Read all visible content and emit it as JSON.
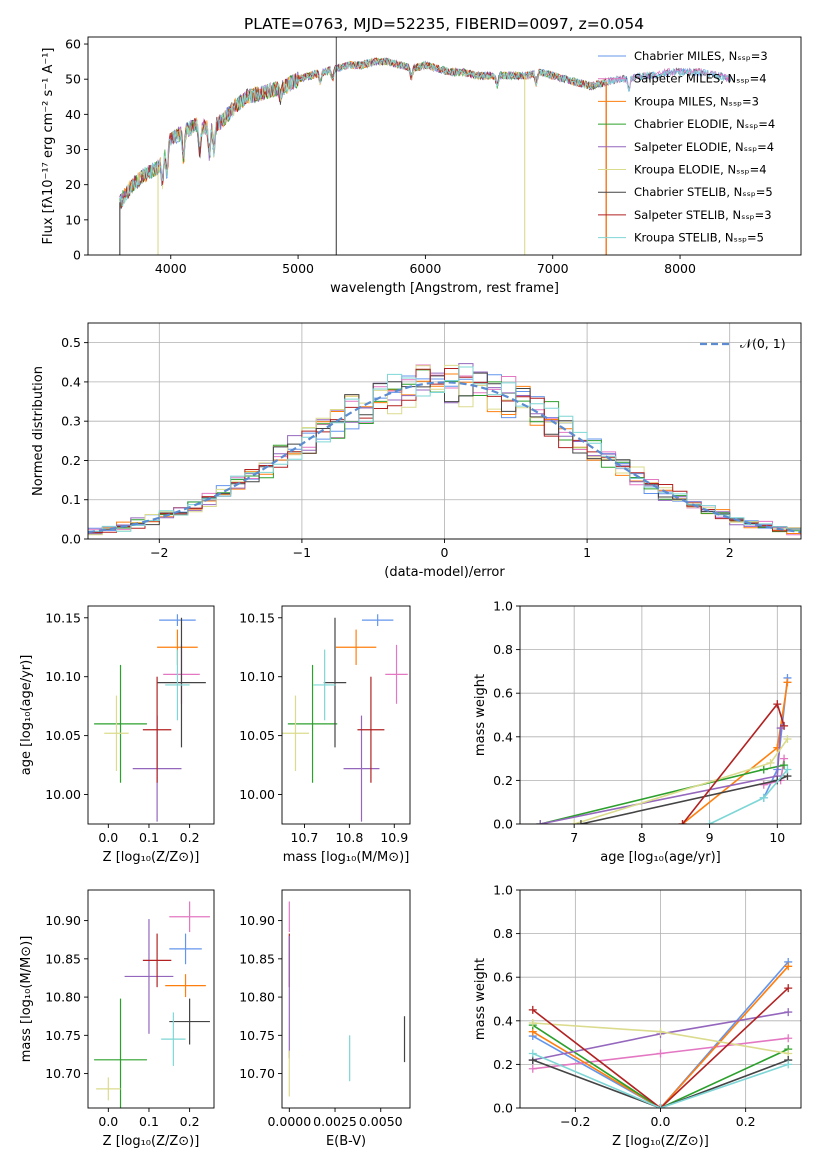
{
  "figure": {
    "title": "PLATE=0763, MJD=52235, FIBERID=0097, z=0.054"
  },
  "colors": {
    "chabrier_miles": "#6495ed",
    "salpeter_miles": "#e377c2",
    "kroupa_miles": "#ff7f0e",
    "chabrier_elodie": "#2ca02c",
    "salpeter_elodie": "#9467bd",
    "kroupa_elodie": "#dbdb8d",
    "chabrier_stelib": "#444444",
    "salpeter_stelib": "#b22222",
    "kroupa_stelib": "#7fd6d6",
    "normal_curve": "#5b8bd0"
  },
  "chart_data": [
    {
      "type": "line",
      "id": "spectrum",
      "xlabel": "wavelength [Angstrom, rest frame]",
      "ylabel": "Flux [fλ10⁻¹⁷ erg cm⁻² s⁻¹ A⁻¹]",
      "xlim": [
        3350,
        8950
      ],
      "ylim": [
        0,
        62
      ],
      "xticks": [
        4000,
        5000,
        6000,
        7000,
        8000
      ],
      "yticks": [
        0,
        10,
        20,
        30,
        40,
        50,
        60
      ],
      "legend_position": "top-right",
      "legend": [
        "Chabrier MILES, Nₛₛₚ=3",
        "Salpeter MILES, Nₛₛₚ=4",
        "Kroupa MILES, Nₛₛₚ=3",
        "Chabrier ELODIE, Nₛₛₚ=4",
        "Salpeter ELODIE, Nₛₛₚ=4",
        "Kroupa ELODIE, Nₛₛₚ=4",
        "Chabrier STELIB, Nₛₛₚ=5",
        "Salpeter STELIB, Nₛₛₚ=3",
        "Kroupa STELIB, Nₛₛₚ=5"
      ],
      "continuum_x": [
        3600,
        3700,
        3800,
        3900,
        4000,
        4100,
        4200,
        4300,
        4400,
        4500,
        4600,
        4700,
        4800,
        4900,
        5000,
        5100,
        5200,
        5300,
        5400,
        5500,
        5600,
        5700,
        5800,
        5900,
        6000,
        6100,
        6200,
        6300,
        6400,
        6500,
        6600,
        6700,
        6800,
        6900,
        7000,
        7100,
        7200,
        7300,
        7400,
        7500,
        7600,
        7700,
        7800,
        7900,
        8000,
        8100,
        8200,
        8300,
        8400
      ],
      "continuum_y": [
        15,
        20,
        23,
        25,
        33,
        35,
        37,
        36,
        38,
        42,
        45,
        46,
        47,
        48,
        50,
        51,
        52,
        53,
        54,
        54,
        55,
        55,
        54,
        53,
        54,
        53,
        52,
        52,
        51,
        51,
        51,
        51,
        51,
        52,
        51,
        50,
        49,
        48,
        49,
        50,
        50,
        51,
        51,
        52,
        52,
        52,
        52,
        51,
        50
      ],
      "spikes": [
        {
          "x": 3900,
          "ymin": 0,
          "color": "kroupa_elodie"
        },
        {
          "x": 5300,
          "ymin": 0,
          "color": "chabrier_stelib"
        },
        {
          "x": 6780,
          "ymin": 0,
          "color": "kroupa_elodie"
        },
        {
          "x": 7420,
          "ymin": 0,
          "color": "salpeter_stelib"
        },
        {
          "x": 7420,
          "ymin": 0,
          "color": "kroupa_miles"
        },
        {
          "x": 3600,
          "ymin": 0,
          "color": "chabrier_stelib"
        }
      ]
    },
    {
      "type": "step",
      "id": "residual_hist",
      "xlabel": "(data-model)/error",
      "ylabel": "Normed distribution",
      "xlim": [
        -2.5,
        2.5
      ],
      "ylim": [
        0,
        0.55
      ],
      "xticks": [
        -2,
        -1,
        0,
        1,
        2
      ],
      "yticks": [
        0.0,
        0.1,
        0.2,
        0.3,
        0.4,
        0.5
      ],
      "grid": true,
      "legend": [
        "𝒩(0, 1)"
      ],
      "legend_position": "top-right",
      "normal_curve": {
        "mean": 0,
        "sigma": 1,
        "style": "dashed"
      }
    },
    {
      "type": "scatter",
      "id": "age_vs_Z",
      "xlabel": "Z [log₁₀(Z/Z⊙)]",
      "ylabel": "age  [log₁₀(age/yr)]",
      "xlim": [
        -0.05,
        0.26
      ],
      "ylim": [
        9.975,
        10.16
      ],
      "xticks": [
        0.0,
        0.1,
        0.2
      ],
      "yticks": [
        10.0,
        10.05,
        10.1,
        10.15
      ],
      "points": [
        {
          "x": 0.17,
          "y": 10.148,
          "xerr": 0.045,
          "yerr": 0.005,
          "color": "chabrier_miles"
        },
        {
          "x": 0.18,
          "y": 10.102,
          "xerr": 0.045,
          "yerr": 0.025,
          "color": "salpeter_miles"
        },
        {
          "x": 0.17,
          "y": 10.125,
          "xerr": 0.05,
          "yerr": 0.015,
          "color": "kroupa_miles"
        },
        {
          "x": 0.03,
          "y": 10.06,
          "xerr": 0.065,
          "yerr": 0.05,
          "color": "chabrier_elodie"
        },
        {
          "x": 0.12,
          "y": 10.022,
          "xerr": 0.06,
          "yerr": 0.045,
          "color": "salpeter_elodie"
        },
        {
          "x": 0.02,
          "y": 10.052,
          "xerr": 0.03,
          "yerr": 0.032,
          "color": "kroupa_elodie"
        },
        {
          "x": 0.18,
          "y": 10.095,
          "xerr": 0.06,
          "yerr": 0.055,
          "color": "chabrier_stelib"
        },
        {
          "x": 0.12,
          "y": 10.055,
          "xerr": 0.035,
          "yerr": 0.045,
          "color": "salpeter_stelib"
        },
        {
          "x": 0.17,
          "y": 10.093,
          "xerr": 0.03,
          "yerr": 0.03,
          "color": "kroupa_stelib"
        }
      ]
    },
    {
      "type": "scatter",
      "id": "age_vs_mass",
      "xlabel": "mass [log₁₀(M/M⊙)]",
      "ylabel": "",
      "xlim": [
        10.65,
        10.935
      ],
      "ylim": [
        9.975,
        10.16
      ],
      "xticks": [
        10.7,
        10.8,
        10.9
      ],
      "yticks": [
        10.0,
        10.05,
        10.1,
        10.15
      ],
      "points": [
        {
          "x": 10.863,
          "y": 10.148,
          "xerr": 0.035,
          "yerr": 0.005,
          "color": "chabrier_miles"
        },
        {
          "x": 10.905,
          "y": 10.102,
          "xerr": 0.025,
          "yerr": 0.025,
          "color": "salpeter_miles"
        },
        {
          "x": 10.815,
          "y": 10.125,
          "xerr": 0.045,
          "yerr": 0.015,
          "color": "kroupa_miles"
        },
        {
          "x": 10.718,
          "y": 10.06,
          "xerr": 0.055,
          "yerr": 0.05,
          "color": "chabrier_elodie"
        },
        {
          "x": 10.827,
          "y": 10.022,
          "xerr": 0.04,
          "yerr": 0.045,
          "color": "salpeter_elodie"
        },
        {
          "x": 10.68,
          "y": 10.052,
          "xerr": 0.03,
          "yerr": 0.032,
          "color": "kroupa_elodie"
        },
        {
          "x": 10.768,
          "y": 10.095,
          "xerr": 0.025,
          "yerr": 0.055,
          "color": "chabrier_stelib"
        },
        {
          "x": 10.848,
          "y": 10.055,
          "xerr": 0.03,
          "yerr": 0.045,
          "color": "salpeter_stelib"
        },
        {
          "x": 10.745,
          "y": 10.093,
          "xerr": 0.025,
          "yerr": 0.03,
          "color": "kroupa_stelib"
        }
      ]
    },
    {
      "type": "line",
      "id": "weight_vs_age",
      "xlabel": "age  [log₁₀(age/yr)]",
      "ylabel": "mass weight",
      "xlim": [
        6.2,
        10.35
      ],
      "ylim": [
        0.0,
        1.0
      ],
      "xticks": [
        7,
        8,
        9,
        10
      ],
      "yticks": [
        0.0,
        0.2,
        0.4,
        0.6,
        0.8,
        1.0
      ],
      "grid": true,
      "series": [
        {
          "color": "chabrier_miles",
          "x": [
            9.8,
            10.0,
            10.15
          ],
          "y": [
            0.12,
            0.25,
            0.67
          ]
        },
        {
          "color": "salpeter_miles",
          "x": [
            9.8,
            10.05,
            10.1
          ],
          "y": [
            0.18,
            0.2,
            0.3
          ]
        },
        {
          "color": "kroupa_miles",
          "x": [
            8.6,
            10.0,
            10.15
          ],
          "y": [
            0.0,
            0.35,
            0.65
          ]
        },
        {
          "color": "chabrier_elodie",
          "x": [
            6.5,
            9.8,
            10.1
          ],
          "y": [
            0.0,
            0.25,
            0.27
          ]
        },
        {
          "color": "salpeter_elodie",
          "x": [
            6.5,
            10.0,
            10.05
          ],
          "y": [
            0.0,
            0.22,
            0.44
          ]
        },
        {
          "color": "kroupa_elodie",
          "x": [
            7.0,
            9.9,
            10.15
          ],
          "y": [
            0.0,
            0.28,
            0.39
          ]
        },
        {
          "color": "chabrier_stelib",
          "x": [
            7.1,
            10.0,
            10.15
          ],
          "y": [
            0.0,
            0.2,
            0.22
          ]
        },
        {
          "color": "salpeter_stelib",
          "x": [
            8.6,
            10.0,
            10.1
          ],
          "y": [
            0.0,
            0.55,
            0.45
          ]
        },
        {
          "color": "kroupa_stelib",
          "x": [
            9.0,
            9.8,
            10.15
          ],
          "y": [
            0.0,
            0.12,
            0.25
          ]
        }
      ]
    },
    {
      "type": "scatter",
      "id": "mass_vs_Z",
      "xlabel": "Z [log₁₀(Z/Z⊙)]",
      "ylabel": "mass [log₁₀(M/M⊙)]",
      "xlim": [
        -0.05,
        0.26
      ],
      "ylim": [
        10.655,
        10.94
      ],
      "xticks": [
        0.0,
        0.1,
        0.2
      ],
      "yticks": [
        10.7,
        10.75,
        10.8,
        10.85,
        10.9
      ],
      "points": [
        {
          "x": 0.19,
          "y": 10.863,
          "xerr": 0.04,
          "yerr": 0.02,
          "color": "chabrier_miles"
        },
        {
          "x": 0.2,
          "y": 10.905,
          "xerr": 0.05,
          "yerr": 0.02,
          "color": "salpeter_miles"
        },
        {
          "x": 0.19,
          "y": 10.815,
          "xerr": 0.05,
          "yerr": 0.015,
          "color": "kroupa_miles"
        },
        {
          "x": 0.03,
          "y": 10.718,
          "xerr": 0.065,
          "yerr": 0.08,
          "color": "chabrier_elodie"
        },
        {
          "x": 0.1,
          "y": 10.827,
          "xerr": 0.06,
          "yerr": 0.075,
          "color": "salpeter_elodie"
        },
        {
          "x": 0.0,
          "y": 10.68,
          "xerr": 0.03,
          "yerr": 0.015,
          "color": "kroupa_elodie"
        },
        {
          "x": 0.2,
          "y": 10.768,
          "xerr": 0.05,
          "yerr": 0.03,
          "color": "chabrier_stelib"
        },
        {
          "x": 0.12,
          "y": 10.848,
          "xerr": 0.035,
          "yerr": 0.035,
          "color": "salpeter_stelib"
        },
        {
          "x": 0.16,
          "y": 10.745,
          "xerr": 0.03,
          "yerr": 0.035,
          "color": "kroupa_stelib"
        }
      ]
    },
    {
      "type": "scatter",
      "id": "mass_vs_ebv",
      "xlabel": "E(B-V)",
      "ylabel": "",
      "xlim": [
        -0.0004,
        0.0066
      ],
      "ylim": [
        10.655,
        10.94
      ],
      "xticks": [
        0.0,
        0.0025,
        0.005
      ],
      "xticklabels": [
        "0.0000",
        "0.0025",
        "0.0050"
      ],
      "yticks": [
        10.7,
        10.75,
        10.8,
        10.85,
        10.9
      ],
      "points": [
        {
          "x": 0.0,
          "y": 10.905,
          "xerr": 0,
          "yerr": 0.02,
          "color": "salpeter_miles"
        },
        {
          "x": 0.0,
          "y": 10.848,
          "xerr": 0,
          "yerr": 0.035,
          "color": "salpeter_stelib"
        },
        {
          "x": 0.0,
          "y": 10.8,
          "xerr": 0,
          "yerr": 0.08,
          "color": "salpeter_elodie"
        },
        {
          "x": 0.0,
          "y": 10.7,
          "xerr": 0,
          "yerr": 0.03,
          "color": "kroupa_elodie"
        },
        {
          "x": 0.0033,
          "y": 10.72,
          "xerr": 0,
          "yerr": 0.03,
          "color": "kroupa_stelib"
        },
        {
          "x": 0.0063,
          "y": 10.745,
          "xerr": 0,
          "yerr": 0.03,
          "color": "chabrier_stelib"
        }
      ]
    },
    {
      "type": "line",
      "id": "weight_vs_Z",
      "xlabel": "Z [log₁₀(Z/Z⊙)]",
      "ylabel": "mass weight",
      "xlim": [
        -0.33,
        0.33
      ],
      "ylim": [
        0.0,
        1.0
      ],
      "xticks": [
        -0.2,
        0.0,
        0.2
      ],
      "yticks": [
        0.0,
        0.2,
        0.4,
        0.6,
        0.8,
        1.0
      ],
      "grid": true,
      "series": [
        {
          "color": "chabrier_miles",
          "x": [
            -0.3,
            0.0,
            0.3
          ],
          "y": [
            0.33,
            0.0,
            0.67
          ]
        },
        {
          "color": "salpeter_miles",
          "x": [
            -0.3,
            0.0,
            0.3
          ],
          "y": [
            0.18,
            0.25,
            0.32
          ]
        },
        {
          "color": "kroupa_miles",
          "x": [
            -0.3,
            0.0,
            0.3
          ],
          "y": [
            0.35,
            0.0,
            0.65
          ]
        },
        {
          "color": "chabrier_elodie",
          "x": [
            -0.3,
            0.0,
            0.3
          ],
          "y": [
            0.38,
            0.0,
            0.27
          ]
        },
        {
          "color": "salpeter_elodie",
          "x": [
            -0.3,
            0.0,
            0.3
          ],
          "y": [
            0.22,
            0.34,
            0.44
          ]
        },
        {
          "color": "kroupa_elodie",
          "x": [
            -0.3,
            0.0,
            0.3
          ],
          "y": [
            0.39,
            0.35,
            0.25
          ]
        },
        {
          "color": "chabrier_stelib",
          "x": [
            -0.3,
            0.0,
            0.3
          ],
          "y": [
            0.22,
            0.0,
            0.22
          ]
        },
        {
          "color": "salpeter_stelib",
          "x": [
            -0.3,
            0.0,
            0.3
          ],
          "y": [
            0.45,
            0.0,
            0.55
          ]
        },
        {
          "color": "kroupa_stelib",
          "x": [
            -0.3,
            0.0,
            0.3
          ],
          "y": [
            0.25,
            0.0,
            0.2
          ]
        }
      ]
    }
  ]
}
